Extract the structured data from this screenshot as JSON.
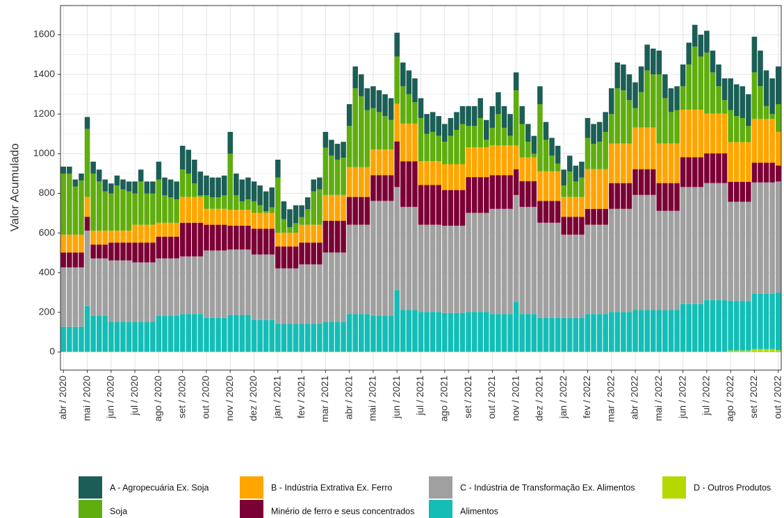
{
  "chart_data": {
    "type": "stacked_bar",
    "ylabel": "Valor Acumulado",
    "ylim": [
      -91,
      1747
    ],
    "yticks": [
      0,
      200,
      400,
      600,
      800,
      1000,
      1200,
      1400,
      1600
    ],
    "grid": true,
    "categories": [
      "abr / 2020",
      null,
      null,
      null,
      "mai / 2020",
      null,
      null,
      null,
      "jun / 2020",
      null,
      null,
      null,
      "jul / 2020",
      null,
      null,
      null,
      "ago / 2020",
      null,
      null,
      null,
      "set / 2020",
      null,
      null,
      null,
      "out / 2020",
      null,
      null,
      null,
      "nov / 2020",
      null,
      null,
      null,
      "dez / 2020",
      null,
      null,
      null,
      "jan / 2021",
      null,
      null,
      null,
      "fev / 2021",
      null,
      null,
      null,
      "mar / 2021",
      null,
      null,
      null,
      "abr / 2021",
      null,
      null,
      null,
      "mai / 2021",
      null,
      null,
      null,
      "jun / 2021",
      null,
      null,
      null,
      "jul / 2021",
      null,
      null,
      null,
      "ago / 2021",
      null,
      null,
      null,
      "set / 2021",
      null,
      null,
      null,
      "out / 2021",
      null,
      null,
      null,
      "nov / 2021",
      null,
      null,
      null,
      "dez / 2021",
      null,
      null,
      null,
      "jan / 2022",
      null,
      null,
      null,
      "fev / 2022",
      null,
      null,
      null,
      "mar / 2022",
      null,
      null,
      null,
      "abr / 2022",
      null,
      null,
      null,
      "mai / 2022",
      null,
      null,
      null,
      "jun / 2022",
      null,
      null,
      null,
      "jul / 2022",
      null,
      null,
      null,
      "ago / 2022",
      null,
      null,
      null,
      "set / 2022",
      null,
      null,
      null,
      "out / 2022"
    ],
    "series": [
      {
        "name": "A - Agropecuária Ex. Soja",
        "color": "#1b5e55",
        "values": [
          35,
          35,
          35,
          35,
          60,
          60,
          60,
          60,
          50,
          50,
          50,
          50,
          60,
          60,
          60,
          60,
          90,
          90,
          90,
          90,
          120,
          120,
          120,
          120,
          100,
          100,
          100,
          100,
          110,
          110,
          110,
          110,
          100,
          100,
          100,
          100,
          90,
          90,
          90,
          90,
          60,
          60,
          60,
          60,
          80,
          80,
          80,
          80,
          110,
          110,
          110,
          110,
          110,
          110,
          110,
          110,
          120,
          120,
          120,
          120,
          100,
          100,
          100,
          100,
          90,
          90,
          90,
          90,
          100,
          100,
          100,
          100,
          110,
          110,
          110,
          110,
          90,
          90,
          90,
          90,
          90,
          90,
          90,
          90,
          80,
          80,
          80,
          80,
          100,
          100,
          100,
          100,
          130,
          130,
          130,
          130,
          130,
          130,
          130,
          130,
          120,
          120,
          120,
          120,
          110,
          110,
          110,
          110,
          110,
          110,
          110,
          110,
          160,
          160,
          160,
          160,
          180,
          180,
          180,
          180,
          190
        ]
      },
      {
        "name": "Soja",
        "color": "#5fad0e",
        "values": [
          308,
          308,
          243,
          273,
          343,
          288,
          248,
          198,
          188,
          228,
          208,
          198,
          158,
          218,
          158,
          158,
          218,
          138,
          128,
          118,
          138,
          118,
          68,
          8,
          68,
          58,
          58,
          68,
          283,
          73,
          43,
          53,
          58,
          38,
          8,
          28,
          278,
          68,
          28,
          48,
          38,
          78,
          168,
          178,
          238,
          198,
          178,
          188,
          208,
          398,
          358,
          288,
          208,
          188,
          168,
          148,
          238,
          188,
          148,
          108,
          218,
          138,
          148,
          128,
          113,
          143,
          173,
          203,
          108,
          108,
          148,
          38,
          88,
          158,
          88,
          48,
          278,
          168,
          78,
          18,
          338,
          158,
          78,
          38,
          58,
          128,
          78,
          98,
          158,
          128,
          138,
          188,
          148,
          278,
          268,
          218,
          98,
          178,
          288,
          268,
          348,
          228,
          158,
          168,
          118,
          228,
          318,
          268,
          308,
          208,
          138,
          68,
          162,
          132,
          122,
          82,
          235,
          165,
          65,
          25,
          140
        ]
      },
      {
        "name": "B - Indústria Extrativa Ex. Ferro",
        "color": "#ffa500",
        "values": [
          90,
          90,
          90,
          90,
          100,
          70,
          70,
          70,
          60,
          60,
          60,
          60,
          90,
          90,
          90,
          90,
          70,
          70,
          70,
          70,
          130,
          130,
          130,
          130,
          80,
          80,
          80,
          80,
          80,
          80,
          80,
          80,
          80,
          80,
          80,
          80,
          70,
          70,
          70,
          70,
          90,
          90,
          90,
          90,
          130,
          130,
          130,
          130,
          150,
          150,
          150,
          150,
          130,
          130,
          130,
          130,
          190,
          190,
          190,
          190,
          120,
          120,
          120,
          120,
          130,
          130,
          130,
          130,
          150,
          150,
          150,
          150,
          150,
          150,
          150,
          150,
          120,
          120,
          120,
          120,
          150,
          150,
          150,
          150,
          100,
          100,
          100,
          100,
          200,
          200,
          200,
          200,
          200,
          200,
          200,
          200,
          210,
          210,
          210,
          210,
          200,
          200,
          200,
          200,
          240,
          240,
          240,
          240,
          200,
          200,
          200,
          200,
          200,
          200,
          200,
          200,
          220,
          220,
          220,
          220,
          170
        ]
      },
      {
        "name": "Minério de ferro e seus concentrados",
        "color": "#7b0035",
        "values": [
          75,
          75,
          75,
          75,
          70,
          70,
          70,
          70,
          90,
          90,
          90,
          90,
          100,
          100,
          100,
          100,
          110,
          110,
          110,
          110,
          170,
          170,
          170,
          170,
          130,
          130,
          130,
          130,
          120,
          120,
          120,
          120,
          130,
          130,
          130,
          130,
          110,
          110,
          110,
          110,
          110,
          110,
          110,
          110,
          160,
          160,
          160,
          160,
          140,
          140,
          140,
          140,
          130,
          130,
          130,
          130,
          230,
          230,
          230,
          230,
          200,
          200,
          200,
          200,
          180,
          180,
          180,
          180,
          180,
          180,
          180,
          180,
          170,
          170,
          170,
          170,
          130,
          130,
          130,
          130,
          110,
          110,
          110,
          110,
          90,
          90,
          90,
          90,
          80,
          80,
          80,
          80,
          130,
          130,
          130,
          130,
          130,
          130,
          130,
          130,
          140,
          140,
          140,
          140,
          150,
          150,
          150,
          150,
          150,
          150,
          150,
          150,
          100,
          100,
          100,
          100,
          100,
          100,
          100,
          100,
          80
        ]
      },
      {
        "name": "C - Indústria de Transformação Ex. Alimentos",
        "color": "#a0a0a0",
        "values": [
          300,
          300,
          300,
          300,
          380,
          290,
          290,
          290,
          310,
          310,
          310,
          310,
          300,
          300,
          300,
          300,
          290,
          290,
          290,
          290,
          290,
          290,
          290,
          290,
          340,
          340,
          340,
          340,
          330,
          330,
          330,
          330,
          330,
          330,
          330,
          330,
          280,
          280,
          280,
          280,
          300,
          300,
          300,
          300,
          350,
          350,
          350,
          350,
          450,
          450,
          450,
          450,
          580,
          580,
          580,
          580,
          520,
          520,
          520,
          520,
          440,
          440,
          440,
          440,
          440,
          440,
          440,
          440,
          500,
          500,
          500,
          500,
          530,
          530,
          530,
          530,
          540,
          540,
          540,
          540,
          480,
          480,
          480,
          480,
          420,
          420,
          420,
          420,
          450,
          450,
          450,
          450,
          520,
          520,
          520,
          520,
          580,
          580,
          580,
          580,
          500,
          500,
          500,
          500,
          590,
          590,
          590,
          590,
          590,
          590,
          590,
          590,
          500,
          500,
          500,
          500,
          560,
          560,
          560,
          560,
          560
        ]
      },
      {
        "name": "Alimentos",
        "color": "#14bdb5",
        "values": [
          125,
          125,
          125,
          125,
          230,
          180,
          180,
          180,
          150,
          150,
          150,
          150,
          150,
          150,
          150,
          150,
          180,
          180,
          180,
          180,
          190,
          190,
          190,
          190,
          170,
          170,
          170,
          170,
          185,
          185,
          185,
          185,
          160,
          160,
          160,
          160,
          140,
          140,
          140,
          140,
          140,
          140,
          140,
          140,
          150,
          150,
          150,
          150,
          190,
          190,
          190,
          190,
          180,
          180,
          180,
          180,
          310,
          210,
          210,
          210,
          200,
          200,
          200,
          200,
          195,
          195,
          195,
          195,
          200,
          200,
          200,
          200,
          190,
          190,
          190,
          190,
          250,
          190,
          190,
          190,
          170,
          170,
          170,
          170,
          170,
          170,
          170,
          170,
          190,
          190,
          190,
          190,
          200,
          200,
          200,
          200,
          210,
          210,
          210,
          210,
          210,
          210,
          210,
          210,
          240,
          240,
          240,
          240,
          260,
          260,
          260,
          260,
          250,
          250,
          250,
          250,
          280,
          280,
          280,
          280,
          290
        ]
      },
      {
        "name": "D - Outros Produtos",
        "color": "#b5d900",
        "values": [
          2,
          2,
          2,
          2,
          2,
          2,
          2,
          2,
          2,
          2,
          2,
          2,
          2,
          2,
          2,
          2,
          2,
          2,
          2,
          2,
          2,
          2,
          2,
          2,
          2,
          2,
          2,
          2,
          2,
          2,
          2,
          2,
          2,
          2,
          2,
          2,
          2,
          2,
          2,
          2,
          2,
          2,
          2,
          2,
          2,
          2,
          2,
          2,
          2,
          2,
          2,
          2,
          2,
          2,
          2,
          2,
          2,
          2,
          2,
          2,
          2,
          2,
          2,
          2,
          2,
          2,
          2,
          2,
          2,
          2,
          2,
          2,
          2,
          2,
          2,
          2,
          2,
          2,
          2,
          2,
          2,
          2,
          2,
          2,
          2,
          2,
          2,
          2,
          2,
          2,
          2,
          2,
          2,
          2,
          2,
          2,
          2,
          2,
          2,
          2,
          2,
          2,
          2,
          2,
          2,
          2,
          2,
          2,
          2,
          2,
          2,
          2,
          8,
          8,
          8,
          8,
          15,
          15,
          15,
          15,
          10
        ]
      }
    ]
  }
}
